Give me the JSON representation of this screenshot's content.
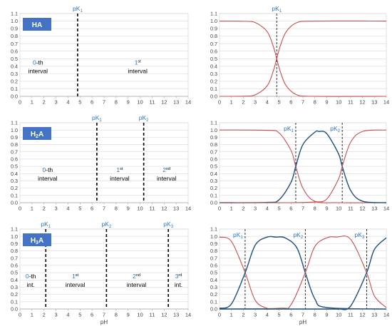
{
  "panels": [
    {
      "id": "ha-intervals",
      "type": "intervals",
      "badge": [
        {
          "t": "HA",
          "sub": false
        }
      ],
      "pk_labels": [
        {
          "pre": "pK",
          "sub": "1",
          "x": 4.8
        }
      ],
      "dashes": [
        4.8
      ],
      "intervals": [
        {
          "x": 1.5,
          "num": "0",
          "suffix": "-th",
          "word": "interval"
        },
        {
          "x": 9.8,
          "num": "1",
          "suffix": "st",
          "sup": true,
          "word": "interval"
        }
      ],
      "xlabel": ""
    },
    {
      "id": "ha-curves",
      "type": "curves",
      "pk_labels": [
        {
          "pre": "pK",
          "sub": "1",
          "x": 4.8
        }
      ],
      "dashes": [
        4.8
      ],
      "pks": [
        4.8
      ],
      "xlabel": ""
    },
    {
      "id": "h2a-intervals",
      "type": "intervals",
      "badge": [
        {
          "t": "H",
          "sub": false
        },
        {
          "t": "2",
          "sub": true
        },
        {
          "t": "A",
          "sub": false
        }
      ],
      "pk_labels": [
        {
          "pre": "pK",
          "sub": "1",
          "x": 6.4
        },
        {
          "pre": "pK",
          "sub": "2",
          "x": 10.3
        }
      ],
      "dashes": [
        6.4,
        10.3
      ],
      "intervals": [
        {
          "x": 2.3,
          "num": "0",
          "suffix": "-th",
          "word": "interval"
        },
        {
          "x": 8.3,
          "num": "1",
          "suffix": "st",
          "sup": true,
          "word": "interval"
        },
        {
          "x": 12.2,
          "num": "2",
          "suffix": "nd",
          "sup": true,
          "word": "interval"
        }
      ],
      "xlabel": ""
    },
    {
      "id": "h2a-curves",
      "type": "curves",
      "pk_labels": [
        {
          "pre": "pK",
          "sub": "1",
          "x": 6.4
        },
        {
          "pre": "pK",
          "sub": "2",
          "x": 10.3
        }
      ],
      "dashes": [
        6.4,
        10.3
      ],
      "pks": [
        6.4,
        10.3
      ],
      "xlabel": ""
    },
    {
      "id": "h3a-intervals",
      "type": "intervals",
      "badge": [
        {
          "t": "H",
          "sub": false
        },
        {
          "t": "3",
          "sub": true
        },
        {
          "t": "A",
          "sub": false
        }
      ],
      "pk_labels": [
        {
          "pre": "pK",
          "sub": "1",
          "x": 2.15
        },
        {
          "pre": "pK",
          "sub": "2",
          "x": 7.2
        },
        {
          "pre": "pK",
          "sub": "3",
          "x": 12.35
        }
      ],
      "dashes": [
        2.15,
        7.2,
        12.35
      ],
      "intervals": [
        {
          "x": 0.9,
          "num": "0",
          "suffix": "-th",
          "word": "int."
        },
        {
          "x": 4.6,
          "num": "1",
          "suffix": "st",
          "sup": true,
          "word": "interval"
        },
        {
          "x": 9.7,
          "num": "2",
          "suffix": "nd",
          "sup": true,
          "word": "interval"
        },
        {
          "x": 13.2,
          "num": "3",
          "suffix": "rd",
          "sup": true,
          "word": "int."
        }
      ],
      "xlabel": "pH"
    },
    {
      "id": "h3a-curves",
      "type": "curves",
      "pk_labels": [
        {
          "pre": "pK",
          "sub": "1",
          "x": 2.15
        },
        {
          "pre": "pK",
          "sub": "2",
          "x": 7.2
        },
        {
          "pre": "pK",
          "sub": "3",
          "x": 12.35
        }
      ],
      "dashes": [
        2.15,
        7.2,
        12.35
      ],
      "pks": [
        2.15,
        7.2,
        12.35
      ],
      "xlabel": "pH"
    }
  ],
  "chart_data": [
    {
      "type": "line",
      "title": "",
      "xlabel": "",
      "ylabel": "",
      "xlim": [
        0,
        14
      ],
      "ylim": [
        0,
        1.1
      ],
      "x_ticks": [
        "0",
        "1",
        "2",
        "3",
        "4",
        "5",
        "6",
        "7",
        "8",
        "9",
        "10",
        "11",
        "12",
        "13",
        "14"
      ],
      "y_ticks": [
        "0.0",
        "0.1",
        "0.2",
        "0.3",
        "0.4",
        "0.5",
        "0.6",
        "0.7",
        "0.8",
        "0.9",
        "1.0",
        "1.1"
      ],
      "series": [],
      "annotations": [
        "HA",
        "pK1 = 4.8",
        "0-th interval",
        "1st interval"
      ]
    },
    {
      "type": "line",
      "title": "",
      "xlabel": "",
      "ylabel": "",
      "xlim": [
        0,
        14
      ],
      "ylim": [
        0,
        1.1
      ],
      "x_ticks": [
        "0",
        "1",
        "2",
        "3",
        "4",
        "5",
        "6",
        "7",
        "8",
        "9",
        "10",
        "11",
        "12",
        "13",
        "14"
      ],
      "y_ticks": [
        "0.0",
        "0.1",
        "0.2",
        "0.3",
        "0.4",
        "0.5",
        "0.6",
        "0.7",
        "0.8",
        "0.9",
        "1.0",
        "1.1"
      ],
      "pK": [
        4.8
      ],
      "series": [
        {
          "color": "#c0504d",
          "x": [
            0,
            2,
            3,
            4,
            4.5,
            4.8,
            5.1,
            5.6,
            6.5,
            8,
            14
          ],
          "values": [
            1.0,
            0.998,
            0.98,
            0.86,
            0.67,
            0.5,
            0.33,
            0.14,
            0.02,
            0.0,
            0.0
          ]
        },
        {
          "color": "#c0504d",
          "x": [
            0,
            2,
            3,
            4,
            4.5,
            4.8,
            5.1,
            5.6,
            6.5,
            8,
            14
          ],
          "values": [
            0.0,
            0.002,
            0.02,
            0.14,
            0.33,
            0.5,
            0.67,
            0.86,
            0.98,
            1.0,
            1.0
          ]
        }
      ]
    },
    {
      "type": "line",
      "title": "",
      "xlabel": "",
      "ylabel": "",
      "xlim": [
        0,
        14
      ],
      "ylim": [
        0,
        1.1
      ],
      "x_ticks": [
        "0",
        "1",
        "2",
        "3",
        "4",
        "5",
        "6",
        "7",
        "8",
        "9",
        "10",
        "11",
        "12",
        "13",
        "14"
      ],
      "y_ticks": [
        "0.0",
        "0.1",
        "0.2",
        "0.3",
        "0.4",
        "0.5",
        "0.6",
        "0.7",
        "0.8",
        "0.9",
        "1.0",
        "1.1"
      ],
      "series": [],
      "annotations": [
        "H2A",
        "pK1 = 6.4",
        "pK2 = 10.3",
        "0-th interval",
        "1st interval",
        "2nd interval"
      ]
    },
    {
      "type": "line",
      "title": "",
      "xlabel": "",
      "ylabel": "",
      "xlim": [
        0,
        14
      ],
      "ylim": [
        0,
        1.1
      ],
      "x_ticks": [
        "0",
        "1",
        "2",
        "3",
        "4",
        "5",
        "6",
        "7",
        "8",
        "9",
        "10",
        "11",
        "12",
        "13",
        "14"
      ],
      "y_ticks": [
        "0.0",
        "0.1",
        "0.2",
        "0.3",
        "0.4",
        "0.5",
        "0.6",
        "0.7",
        "0.8",
        "0.9",
        "1.0",
        "1.1"
      ],
      "pK": [
        6.4,
        10.3
      ],
      "series": [
        {
          "color": "#c0504d",
          "x": [
            0,
            4,
            5,
            6,
            6.4,
            7,
            8,
            10,
            14
          ],
          "values": [
            1.0,
            0.996,
            0.96,
            0.72,
            0.5,
            0.2,
            0.02,
            0.0,
            0.0
          ]
        },
        {
          "color": "#1f4e79",
          "x": [
            0,
            4,
            5,
            6,
            6.4,
            7,
            8,
            8.35,
            9,
            10,
            10.3,
            11,
            12,
            14
          ],
          "values": [
            0.0,
            0.004,
            0.04,
            0.28,
            0.5,
            0.8,
            0.97,
            0.98,
            0.95,
            0.67,
            0.5,
            0.17,
            0.02,
            0.0
          ]
        },
        {
          "color": "#c0504d",
          "x": [
            0,
            6,
            8,
            9,
            10,
            10.3,
            11,
            12,
            14
          ],
          "values": [
            0.0,
            0.0,
            0.01,
            0.05,
            0.33,
            0.5,
            0.83,
            0.98,
            1.0
          ]
        }
      ]
    },
    {
      "type": "line",
      "title": "",
      "xlabel": "pH",
      "ylabel": "",
      "xlim": [
        0,
        14
      ],
      "ylim": [
        0,
        1.1
      ],
      "x_ticks": [
        "0",
        "1",
        "2",
        "3",
        "4",
        "5",
        "6",
        "7",
        "8",
        "9",
        "10",
        "11",
        "12",
        "13",
        "14"
      ],
      "y_ticks": [
        "0.0",
        "0.1",
        "0.2",
        "0.3",
        "0.4",
        "0.5",
        "0.6",
        "0.7",
        "0.8",
        "0.9",
        "1.0",
        "1.1"
      ],
      "series": [],
      "annotations": [
        "H3A",
        "pK1 = 2.15",
        "pK2 = 7.2",
        "pK3 = 12.35",
        "0-th int.",
        "1st interval",
        "2nd interval",
        "3rd int."
      ]
    },
    {
      "type": "line",
      "title": "",
      "xlabel": "pH",
      "ylabel": "",
      "xlim": [
        0,
        14
      ],
      "ylim": [
        0,
        1.1
      ],
      "x_ticks": [
        "0",
        "1",
        "2",
        "3",
        "4",
        "5",
        "6",
        "7",
        "8",
        "9",
        "10",
        "11",
        "12",
        "13",
        "14"
      ],
      "y_ticks": [
        "0.0",
        "0.1",
        "0.2",
        "0.3",
        "0.4",
        "0.5",
        "0.6",
        "0.7",
        "0.8",
        "0.9",
        "1.0",
        "1.1"
      ],
      "pK": [
        2.15,
        7.2,
        12.35
      ],
      "series": [
        {
          "color": "#c0504d",
          "x": [
            0,
            1,
            2.15,
            3,
            4,
            5,
            14
          ],
          "values": [
            0.99,
            0.93,
            0.5,
            0.12,
            0.01,
            0.0,
            0.0
          ]
        },
        {
          "color": "#1f4e79",
          "x": [
            0,
            1,
            2.15,
            3,
            4,
            4.7,
            5.5,
            6.5,
            7.2,
            8,
            9,
            14
          ],
          "values": [
            0.01,
            0.07,
            0.5,
            0.88,
            0.99,
            0.99,
            0.98,
            0.84,
            0.5,
            0.14,
            0.02,
            0.0
          ]
        },
        {
          "color": "#c0504d",
          "x": [
            0,
            5,
            6,
            7.2,
            8,
            9,
            9.8,
            11,
            12.35,
            13,
            14
          ],
          "values": [
            0.0,
            0.01,
            0.06,
            0.5,
            0.86,
            0.98,
            0.99,
            0.96,
            0.5,
            0.18,
            0.02
          ]
        },
        {
          "color": "#1f4e79",
          "x": [
            0,
            9,
            10,
            11,
            12.35,
            13,
            14
          ],
          "values": [
            0.0,
            0.0,
            0.0,
            0.04,
            0.5,
            0.82,
            0.98
          ]
        }
      ]
    }
  ]
}
